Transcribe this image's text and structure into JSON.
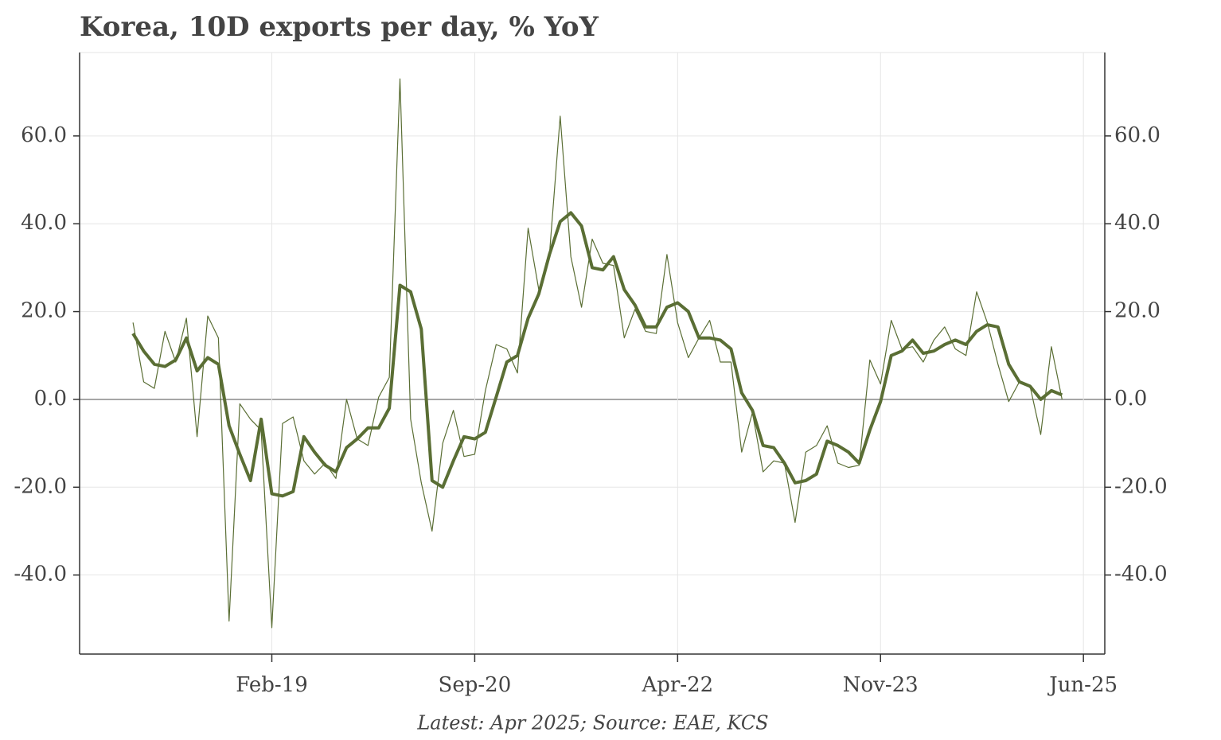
{
  "chart_data": {
    "type": "line",
    "title": "Korea, 10D exports per day, % YoY",
    "footnote": "Latest: Apr 2025; Source: EAE, KCS",
    "x": [
      "Jan-18",
      "Feb-18",
      "Mar-18",
      "Apr-18",
      "May-18",
      "Jun-18",
      "Jul-18",
      "Aug-18",
      "Sep-18",
      "Oct-18",
      "Nov-18",
      "Dec-18",
      "Jan-19",
      "Feb-19",
      "Mar-19",
      "Apr-19",
      "May-19",
      "Jun-19",
      "Jul-19",
      "Aug-19",
      "Sep-19",
      "Oct-19",
      "Nov-19",
      "Dec-19",
      "Jan-20",
      "Feb-20",
      "Mar-20",
      "Apr-20",
      "May-20",
      "Jun-20",
      "Jul-20",
      "Aug-20",
      "Sep-20",
      "Oct-20",
      "Nov-20",
      "Dec-20",
      "Jan-21",
      "Feb-21",
      "Mar-21",
      "Apr-21",
      "May-21",
      "Jun-21",
      "Jul-21",
      "Aug-21",
      "Sep-21",
      "Oct-21",
      "Nov-21",
      "Dec-21",
      "Jan-22",
      "Feb-22",
      "Mar-22",
      "Apr-22",
      "May-22",
      "Jun-22",
      "Jul-22",
      "Aug-22",
      "Sep-22",
      "Oct-22",
      "Nov-22",
      "Dec-22",
      "Jan-23",
      "Feb-23",
      "Mar-23",
      "Apr-23",
      "May-23",
      "Jun-23",
      "Jul-23",
      "Aug-23",
      "Sep-23",
      "Oct-23",
      "Nov-23",
      "Dec-23",
      "Jan-24",
      "Feb-24",
      "Mar-24",
      "Apr-24",
      "May-24",
      "Jun-24",
      "Jul-24",
      "Aug-24",
      "Sep-24",
      "Oct-24",
      "Nov-24",
      "Dec-24",
      "Jan-25",
      "Feb-25",
      "Mar-25",
      "Apr-25"
    ],
    "series": [
      {
        "color": "#5a6e34",
        "width": 1.2,
        "values": [
          17.5,
          4,
          2.5,
          15.5,
          8.5,
          18.5,
          -8.5,
          19,
          14,
          -50.5,
          -1,
          -4.5,
          -7,
          -52,
          -5.5,
          -4,
          -14,
          -17,
          -14.5,
          -18,
          0,
          -9,
          -10.5,
          0.5,
          5,
          73,
          -4.5,
          -19,
          -30,
          -10,
          -2.5,
          -13,
          -12.5,
          2,
          12.5,
          11.5,
          6,
          39,
          25,
          33,
          64.5,
          32.5,
          21,
          36.5,
          31,
          30.5,
          14,
          20.5,
          15.5,
          15,
          33,
          17.5,
          9.5,
          14,
          18,
          8.5,
          8.5,
          -12,
          -3,
          -16.5,
          -14,
          -14.5,
          -28,
          -12,
          -10.5,
          -6,
          -14.5,
          -15.5,
          -15,
          9,
          3.5,
          18,
          11.5,
          12,
          8.5,
          13.5,
          16.5,
          11.5,
          10,
          24.5,
          17.5,
          8,
          -0.5,
          4,
          3,
          -8,
          12,
          0
        ]
      },
      {
        "color": "#5a6e34",
        "width": 4,
        "values": [
          15,
          11,
          8,
          7.5,
          9,
          14,
          6.5,
          9.5,
          8,
          -6,
          -12.5,
          -18.5,
          -4.5,
          -21.5,
          -22,
          -21,
          -8.5,
          -12,
          -15,
          -16.5,
          -11,
          -9,
          -6.5,
          -6.5,
          -2,
          26,
          24.5,
          16,
          -18.5,
          -20,
          -14,
          -8.5,
          -9,
          -7.5,
          0.5,
          8.5,
          10,
          18.5,
          24,
          33,
          40.5,
          42.5,
          39.5,
          30,
          29.5,
          32.5,
          25,
          21.5,
          16.5,
          16.5,
          21,
          22,
          20,
          14,
          14,
          13.5,
          11.5,
          1.5,
          -2.5,
          -10.5,
          -11,
          -14.5,
          -19,
          -18.5,
          -17,
          -9.5,
          -10.5,
          -12,
          -14.5,
          -7,
          -0.5,
          10,
          11,
          13.5,
          10.5,
          11,
          12.5,
          13.5,
          12.5,
          15.5,
          17,
          16.5,
          8,
          4,
          3,
          0,
          2,
          1
        ]
      }
    ],
    "xlim": [
      "Aug-17",
      "Aug-25"
    ],
    "xticks": [
      "Feb-19",
      "Sep-20",
      "Apr-22",
      "Nov-23",
      "Jun-25"
    ],
    "ylim": [
      -58,
      79
    ],
    "yticks": [
      {
        "value": -40,
        "label": "-40.0"
      },
      {
        "value": -20,
        "label": "-20.0"
      },
      {
        "value": 0,
        "label": "0.0"
      },
      {
        "value": 20,
        "label": "20.0"
      },
      {
        "value": 40,
        "label": "40.0"
      },
      {
        "value": 60,
        "label": "60.0"
      }
    ],
    "grid": true
  }
}
